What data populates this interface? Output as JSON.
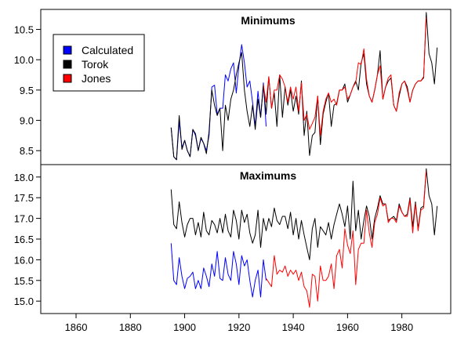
{
  "chart_data": [
    {
      "type": "line",
      "title": "Minimums",
      "xlim": [
        1847,
        1998
      ],
      "ylim": [
        8.27,
        10.83
      ],
      "xticks": [
        1860,
        1880,
        1900,
        1920,
        1940,
        1960,
        1980
      ],
      "yticks": [
        8.5,
        9.0,
        9.5,
        10.0,
        10.5
      ],
      "ytick_labels": [
        "8.5",
        "9.0",
        "9.5",
        "10.0",
        "10.5"
      ],
      "legend": {
        "position": "top-left",
        "entries": [
          {
            "label": "Calculated",
            "color": "#0000ff"
          },
          {
            "label": "Torok",
            "color": "#000000"
          },
          {
            "label": "Jones",
            "color": "#ff0000"
          }
        ]
      },
      "series": [
        {
          "name": "Calculated",
          "color": "#0000ff",
          "x": [
            1895,
            1896,
            1897,
            1898,
            1899,
            1900,
            1901,
            1902,
            1903,
            1904,
            1905,
            1906,
            1907,
            1908,
            1909,
            1910,
            1911,
            1912,
            1913,
            1914,
            1915,
            1916,
            1917,
            1918,
            1919,
            1920,
            1921,
            1922,
            1923,
            1924,
            1925,
            1926,
            1927,
            1928,
            1929,
            1930
          ],
          "y": [
            8.88,
            8.4,
            8.35,
            8.98,
            8.55,
            8.67,
            8.5,
            8.4,
            8.85,
            8.75,
            8.5,
            8.7,
            8.62,
            8.5,
            8.75,
            9.55,
            9.58,
            9.1,
            9.2,
            9.2,
            9.75,
            9.65,
            9.85,
            9.95,
            9.45,
            9.9,
            10.25,
            9.95,
            9.55,
            9.65,
            9.3,
            8.9,
            9.48,
            9.05,
            9.62,
            8.9
          ]
        },
        {
          "name": "Torok",
          "color": "#000000",
          "x": [
            1895,
            1896,
            1897,
            1898,
            1899,
            1900,
            1901,
            1902,
            1903,
            1904,
            1905,
            1906,
            1907,
            1908,
            1909,
            1910,
            1911,
            1912,
            1913,
            1914,
            1915,
            1916,
            1917,
            1918,
            1919,
            1920,
            1921,
            1922,
            1923,
            1924,
            1925,
            1926,
            1927,
            1928,
            1929,
            1930,
            1931,
            1932,
            1933,
            1934,
            1935,
            1936,
            1937,
            1938,
            1939,
            1940,
            1941,
            1942,
            1943,
            1944,
            1945,
            1946,
            1947,
            1948,
            1949,
            1950,
            1951,
            1952,
            1953,
            1954,
            1955,
            1956,
            1957,
            1958,
            1959,
            1960,
            1961,
            1962,
            1963,
            1964,
            1965,
            1966,
            1967,
            1968,
            1969,
            1970,
            1971,
            1972,
            1973,
            1974,
            1975,
            1976,
            1977,
            1978,
            1979,
            1980,
            1981,
            1982,
            1983,
            1984,
            1985,
            1986,
            1987,
            1988,
            1989,
            1990,
            1991,
            1992,
            1993
          ],
          "y": [
            8.88,
            8.4,
            8.35,
            9.08,
            8.52,
            8.67,
            8.5,
            8.4,
            8.85,
            8.78,
            8.5,
            8.72,
            8.62,
            8.45,
            8.82,
            9.5,
            9.25,
            9.08,
            9.2,
            8.5,
            9.25,
            9.0,
            9.35,
            9.5,
            9.75,
            9.95,
            10.12,
            9.5,
            9.15,
            8.9,
            9.25,
            8.85,
            9.35,
            9.05,
            9.58,
            9.1,
            9.72,
            9.2,
            9.45,
            8.9,
            9.75,
            9.05,
            9.55,
            9.25,
            9.5,
            9.15,
            9.4,
            9.1,
            9.65,
            8.75,
            9.15,
            8.42,
            8.75,
            8.8,
            9.4,
            8.6,
            9.1,
            9.3,
            9.45,
            8.9,
            9.25,
            9.28,
            9.5,
            9.5,
            9.6,
            9.3,
            9.42,
            9.55,
            9.65,
            9.5,
            9.95,
            10.1,
            9.6,
            9.4,
            9.3,
            9.5,
            9.75,
            10.15,
            9.35,
            9.55,
            9.65,
            9.7,
            9.25,
            9.15,
            9.4,
            9.6,
            9.65,
            9.55,
            9.3,
            9.5,
            9.6,
            9.65,
            9.65,
            9.7,
            10.78,
            10.1,
            9.95,
            9.6,
            10.2
          ]
        },
        {
          "name": "Jones",
          "color": "#ff0000",
          "x": [
            1929,
            1930,
            1931,
            1932,
            1933,
            1934,
            1935,
            1936,
            1937,
            1938,
            1939,
            1940,
            1941,
            1942,
            1943,
            1944,
            1945,
            1946,
            1947,
            1948,
            1949,
            1950,
            1951,
            1952,
            1953,
            1954,
            1955,
            1956,
            1957,
            1958,
            1959,
            1960,
            1961,
            1962,
            1963,
            1964,
            1965,
            1966,
            1967,
            1968,
            1969,
            1970,
            1971,
            1972,
            1973,
            1974,
            1975,
            1976,
            1977,
            1978,
            1979,
            1980,
            1981,
            1982,
            1983,
            1984,
            1985,
            1986,
            1987,
            1988,
            1989
          ],
          "y": [
            9.58,
            9.3,
            9.72,
            9.2,
            9.5,
            9.5,
            9.75,
            9.68,
            9.55,
            9.3,
            9.55,
            9.35,
            9.55,
            9.15,
            9.62,
            9.0,
            9.1,
            8.85,
            8.95,
            9.05,
            9.4,
            8.75,
            9.15,
            9.35,
            9.45,
            9.3,
            9.35,
            9.25,
            9.5,
            9.5,
            9.55,
            9.35,
            9.42,
            9.55,
            9.62,
            9.95,
            9.92,
            10.18,
            9.68,
            9.4,
            9.3,
            9.5,
            9.75,
            9.9,
            9.35,
            9.55,
            9.7,
            9.75,
            9.25,
            9.15,
            9.45,
            9.6,
            9.65,
            9.5,
            9.3,
            9.5,
            9.6,
            9.65,
            9.65,
            9.72,
            10.7
          ]
        }
      ]
    },
    {
      "type": "line",
      "title": "Maximums",
      "xlim": [
        1847,
        1998
      ],
      "ylim": [
        14.7,
        18.3
      ],
      "xticks": [
        1860,
        1880,
        1900,
        1920,
        1940,
        1960,
        1980
      ],
      "xtick_labels": [
        "1860",
        "1880",
        "1900",
        "1920",
        "1940",
        "1960",
        "1980"
      ],
      "yticks": [
        15.0,
        15.5,
        16.0,
        16.5,
        17.0,
        17.5,
        18.0
      ],
      "ytick_labels": [
        "15.0",
        "15.5",
        "16.0",
        "16.5",
        "17.0",
        "17.5",
        "18.0"
      ],
      "series": [
        {
          "name": "Calculated",
          "color": "#0000ff",
          "x": [
            1895,
            1896,
            1897,
            1898,
            1899,
            1900,
            1901,
            1902,
            1903,
            1904,
            1905,
            1906,
            1907,
            1908,
            1909,
            1910,
            1911,
            1912,
            1913,
            1914,
            1915,
            1916,
            1917,
            1918,
            1919,
            1920,
            1921,
            1922,
            1923,
            1924,
            1925,
            1926,
            1927,
            1928,
            1929,
            1930
          ],
          "y": [
            16.4,
            15.5,
            15.4,
            16.05,
            15.6,
            15.3,
            15.55,
            15.6,
            15.7,
            15.3,
            15.5,
            15.3,
            15.8,
            15.6,
            15.35,
            15.9,
            15.6,
            16.2,
            15.55,
            15.5,
            16.05,
            15.65,
            15.5,
            16.2,
            15.9,
            15.4,
            16.1,
            15.85,
            16.0,
            15.5,
            15.1,
            15.5,
            15.75,
            15.1,
            16.0,
            15.5
          ]
        },
        {
          "name": "Torok",
          "color": "#000000",
          "x": [
            1895,
            1896,
            1897,
            1898,
            1899,
            1900,
            1901,
            1902,
            1903,
            1904,
            1905,
            1906,
            1907,
            1908,
            1909,
            1910,
            1911,
            1912,
            1913,
            1914,
            1915,
            1916,
            1917,
            1918,
            1919,
            1920,
            1921,
            1922,
            1923,
            1924,
            1925,
            1926,
            1927,
            1928,
            1929,
            1930,
            1931,
            1932,
            1933,
            1934,
            1935,
            1936,
            1937,
            1938,
            1939,
            1940,
            1941,
            1942,
            1943,
            1944,
            1945,
            1946,
            1947,
            1948,
            1949,
            1950,
            1951,
            1952,
            1953,
            1954,
            1955,
            1956,
            1957,
            1958,
            1959,
            1960,
            1961,
            1962,
            1963,
            1964,
            1965,
            1966,
            1967,
            1968,
            1969,
            1970,
            1971,
            1972,
            1973,
            1974,
            1975,
            1976,
            1977,
            1978,
            1979,
            1980,
            1981,
            1982,
            1983,
            1984,
            1985,
            1986,
            1987,
            1988,
            1989,
            1990,
            1991,
            1992,
            1993
          ],
          "y": [
            17.7,
            16.85,
            16.75,
            17.4,
            16.9,
            16.55,
            16.85,
            17.0,
            17.0,
            16.6,
            16.9,
            16.55,
            17.15,
            16.7,
            16.6,
            16.95,
            16.85,
            16.65,
            17.0,
            16.65,
            17.1,
            16.7,
            16.55,
            17.2,
            16.95,
            16.5,
            17.2,
            16.9,
            17.1,
            16.65,
            16.4,
            16.6,
            17.2,
            16.3,
            17.0,
            16.7,
            17.0,
            16.8,
            17.25,
            16.95,
            16.85,
            17.05,
            17.05,
            16.75,
            17.15,
            16.6,
            17.0,
            16.5,
            16.95,
            16.6,
            16.3,
            16.0,
            16.75,
            17.0,
            16.3,
            16.8,
            16.7,
            16.6,
            16.9,
            16.5,
            16.85,
            17.1,
            17.35,
            17.1,
            16.8,
            17.3,
            16.5,
            17.9,
            16.7,
            17.2,
            16.5,
            16.95,
            17.3,
            17.05,
            16.5,
            17.0,
            17.25,
            17.55,
            17.35,
            17.35,
            16.95,
            17.0,
            17.05,
            16.95,
            17.35,
            17.15,
            17.05,
            17.1,
            17.5,
            16.8,
            17.4,
            16.75,
            17.25,
            17.3,
            18.2,
            17.55,
            17.35,
            16.6,
            17.3
          ]
        },
        {
          "name": "Jones",
          "color": "#ff0000",
          "x": [
            1930,
            1931,
            1932,
            1933,
            1934,
            1935,
            1936,
            1937,
            1938,
            1939,
            1940,
            1941,
            1942,
            1943,
            1944,
            1945,
            1946,
            1947,
            1948,
            1949,
            1950,
            1951,
            1952,
            1953,
            1954,
            1955,
            1956,
            1957,
            1958,
            1959,
            1960,
            1961,
            1962,
            1963,
            1964,
            1965,
            1966,
            1967,
            1968,
            1969,
            1970,
            1971,
            1972,
            1973,
            1974,
            1975,
            1976,
            1977,
            1978,
            1979,
            1980,
            1981,
            1982,
            1983,
            1984,
            1985,
            1986,
            1987,
            1988,
            1989
          ],
          "y": [
            15.55,
            15.45,
            15.35,
            16.1,
            15.65,
            15.75,
            15.7,
            15.85,
            15.6,
            15.75,
            15.65,
            15.75,
            15.5,
            15.7,
            15.35,
            15.25,
            14.85,
            15.65,
            15.6,
            15.0,
            15.85,
            15.5,
            15.5,
            15.6,
            15.9,
            15.3,
            16.1,
            16.25,
            15.8,
            16.75,
            16.35,
            16.15,
            16.7,
            15.4,
            16.25,
            16.4,
            16.4,
            17.2,
            16.65,
            16.3,
            16.9,
            17.1,
            17.5,
            17.3,
            17.35,
            16.9,
            17.0,
            17.0,
            16.9,
            17.3,
            17.15,
            17.05,
            17.05,
            17.45,
            16.65,
            17.35,
            16.7,
            17.2,
            17.25,
            18.15
          ]
        }
      ]
    }
  ]
}
